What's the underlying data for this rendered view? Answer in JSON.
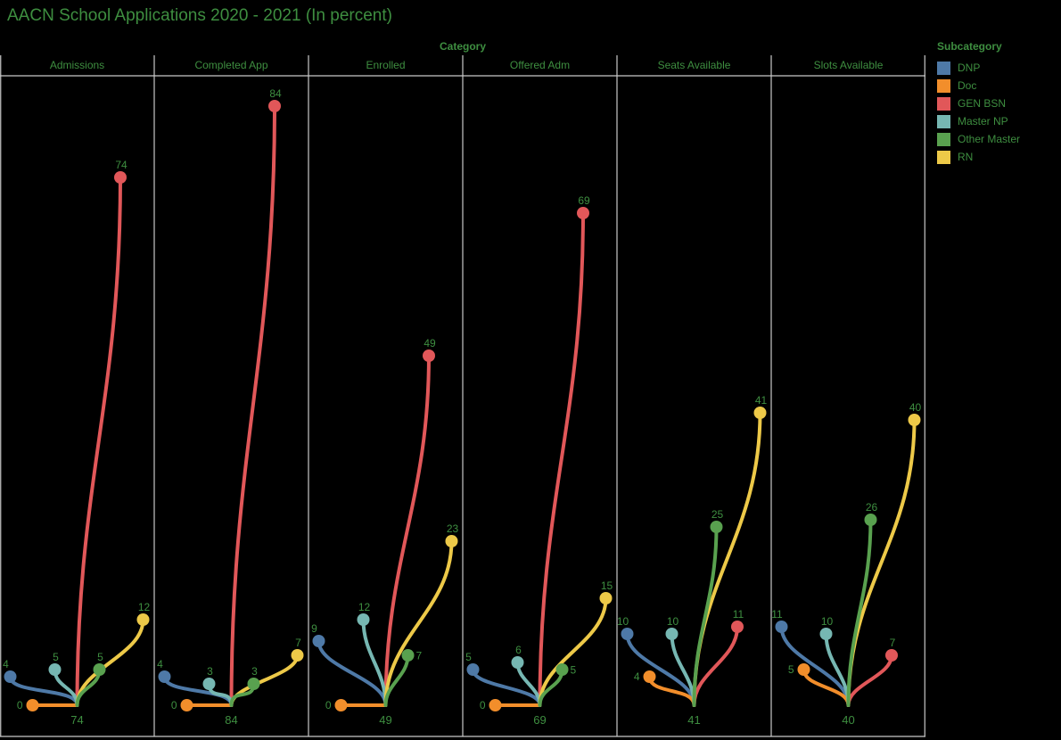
{
  "title": "AACN School Applications 2020 - 2021 (In percent)",
  "category_header": "Category",
  "legend": {
    "title": "Subcategory",
    "position": "top-right",
    "items": [
      {
        "label": "DNP",
        "color": "#4e79a7"
      },
      {
        "label": "Doc",
        "color": "#f28e2b"
      },
      {
        "label": "GEN BSN",
        "color": "#e15759"
      },
      {
        "label": "Master NP",
        "color": "#76b7b2"
      },
      {
        "label": "Other Master",
        "color": "#59a14f"
      },
      {
        "label": "RN",
        "color": "#edc948"
      }
    ]
  },
  "chart_data": {
    "type": "scatter",
    "subtype": "origin-spray curves, one panel per category, dot height encodes value",
    "title": "AACN School Applications 2020 - 2021 (In percent)",
    "categories": [
      "Admissions",
      "Completed App",
      "Enrolled",
      "Offered Adm",
      "Seats Available",
      "Slots Available"
    ],
    "series": [
      {
        "name": "DNP",
        "values": [
          4,
          4,
          9,
          5,
          10,
          11
        ]
      },
      {
        "name": "Doc",
        "values": [
          0,
          0,
          0,
          0,
          4,
          5
        ]
      },
      {
        "name": "GEN BSN",
        "values": [
          74,
          84,
          49,
          69,
          11,
          7
        ]
      },
      {
        "name": "Master NP",
        "values": [
          5,
          3,
          12,
          6,
          10,
          10
        ]
      },
      {
        "name": "Other Master",
        "values": [
          5,
          3,
          7,
          5,
          25,
          26
        ]
      },
      {
        "name": "RN",
        "values": [
          12,
          7,
          23,
          15,
          41,
          40
        ]
      }
    ],
    "panel_max_labels": [
      74,
      84,
      49,
      69,
      41,
      40
    ],
    "value_unit": "percent",
    "ylim": [
      0,
      88
    ],
    "grid": false,
    "legend_position": "top-right"
  },
  "style": {
    "background": "#000000",
    "text_green": "#3e8e40",
    "grid_line": "#c9c9c9"
  }
}
